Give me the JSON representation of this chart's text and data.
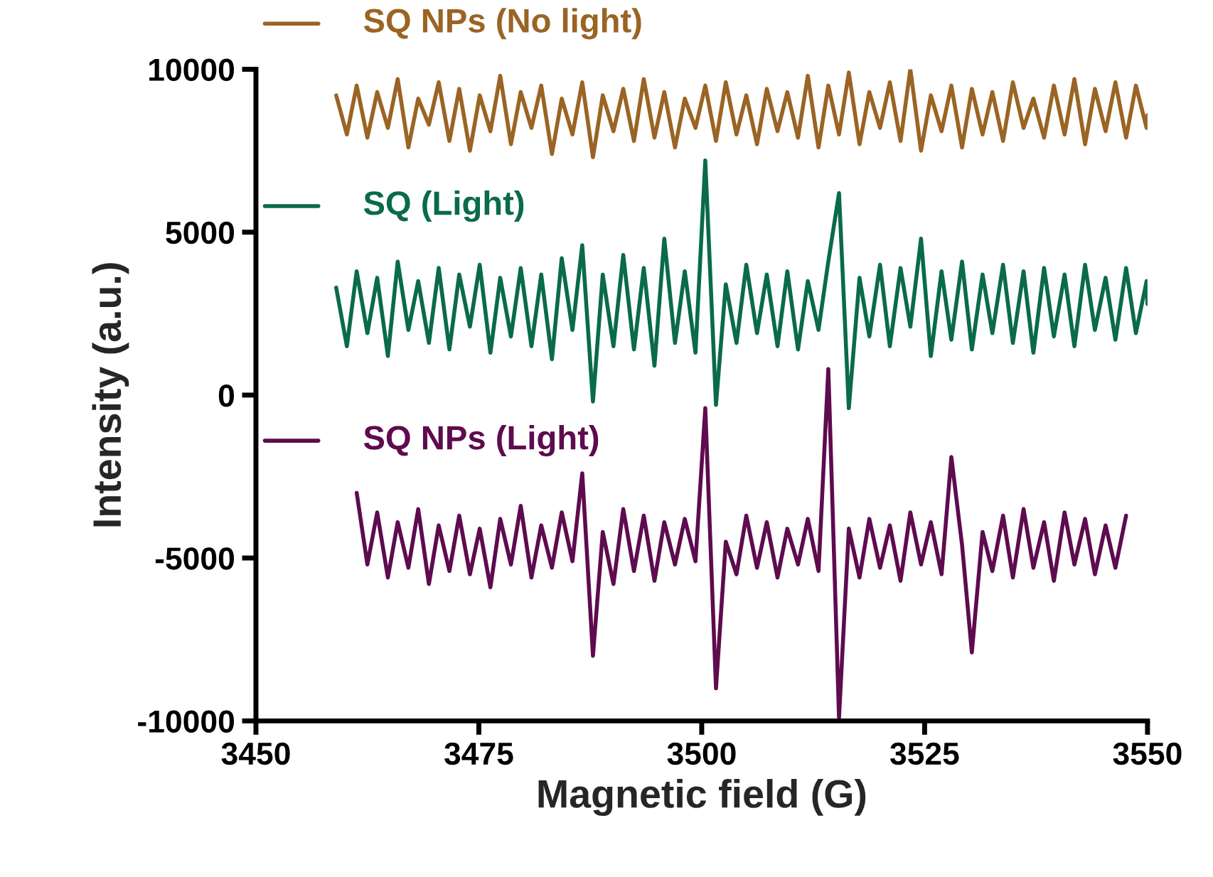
{
  "chart_data": {
    "type": "line",
    "xlabel": "Magnetic field (G)",
    "ylabel": "Intensity (a.u.)",
    "xlim": [
      3450,
      3550
    ],
    "xticks": [
      3450,
      3475,
      3500,
      3525,
      3550
    ],
    "ylim": [
      -10000,
      10000
    ],
    "legend": "top left",
    "yticks": [
      -10000,
      -5000,
      0,
      5000,
      10000
    ],
    "x": [
      3459.0,
      3460.2,
      3461.3,
      3462.5,
      3463.6,
      3464.8,
      3465.9,
      3467.1,
      3468.2,
      3469.4,
      3470.5,
      3471.7,
      3472.8,
      3474.0,
      3475.1,
      3476.3,
      3477.4,
      3478.6,
      3479.7,
      3480.9,
      3482.0,
      3483.2,
      3484.3,
      3485.5,
      3486.6,
      3487.8,
      3488.9,
      3490.1,
      3491.2,
      3492.4,
      3493.5,
      3494.7,
      3495.8,
      3497.0,
      3498.1,
      3499.3,
      3500.4,
      3501.6,
      3502.7,
      3503.9,
      3505.0,
      3506.2,
      3507.3,
      3508.5,
      3509.6,
      3510.8,
      3511.9,
      3513.1,
      3514.2,
      3515.4,
      3516.5,
      3517.7,
      3518.8,
      3520.0,
      3521.1,
      3522.3,
      3523.4,
      3524.6,
      3525.7,
      3526.9,
      3528.0,
      3529.2,
      3530.3,
      3531.5,
      3532.6,
      3533.8,
      3534.9,
      3536.1,
      3537.2,
      3538.4,
      3539.5,
      3540.7,
      3541.8,
      3543.0,
      3544.1,
      3545.3,
      3546.4,
      3547.6,
      3548.7,
      3549.9,
      3550.0
    ],
    "series": [
      {
        "name": "SQ NPs (No light)",
        "color": "#9a6424",
        "values": [
          9200,
          8000,
          9500,
          7900,
          9300,
          8200,
          9700,
          7600,
          9100,
          8300,
          9600,
          7800,
          9400,
          7500,
          9200,
          8100,
          9800,
          7700,
          9300,
          8200,
          9500,
          7400,
          9100,
          8000,
          9600,
          7300,
          9200,
          8100,
          9400,
          7800,
          9700,
          7900,
          9300,
          7600,
          9100,
          8200,
          9500,
          7800,
          9600,
          8000,
          9200,
          7700,
          9400,
          8100,
          9300,
          7900,
          9800,
          7600,
          9500,
          8000,
          9900,
          7700,
          9300,
          8200,
          9600,
          7800,
          10000,
          7500,
          9200,
          8100,
          9500,
          7600,
          9400,
          8000,
          9300,
          7800,
          9600,
          8200,
          9100,
          7900,
          9500,
          8000,
          9700,
          7700,
          9400,
          8100,
          9600,
          7900,
          9500,
          8200,
          8600
        ]
      },
      {
        "name": "SQ (Light)",
        "color": "#0a6b48",
        "values": [
          3300,
          1500,
          3800,
          1900,
          3600,
          1200,
          4100,
          2000,
          3500,
          1600,
          3900,
          1400,
          3700,
          2100,
          4000,
          1300,
          3600,
          1800,
          3900,
          1500,
          3700,
          1100,
          4200,
          2000,
          4600,
          -200,
          3700,
          1500,
          4300,
          1400,
          3900,
          900,
          4800,
          1600,
          3800,
          1300,
          7200,
          -300,
          3400,
          1600,
          4000,
          1900,
          3700,
          1500,
          3800,
          1400,
          3500,
          2000,
          4100,
          6200,
          -400,
          3600,
          1800,
          4000,
          1500,
          3900,
          2100,
          4800,
          1200,
          3800,
          1700,
          4100,
          1400,
          3700,
          1900,
          4000,
          1600,
          3800,
          1300,
          3900,
          1800,
          3700,
          1500,
          4000,
          2000,
          3600,
          1700,
          3900,
          1900,
          3500,
          2800
        ]
      },
      {
        "name": "SQ NPs (Light)",
        "color": "#5e0b4f",
        "x": [
          3461.3,
          3462.5,
          3463.6,
          3464.8,
          3465.9,
          3467.1,
          3468.2,
          3469.4,
          3470.5,
          3471.7,
          3472.8,
          3474.0,
          3475.1,
          3476.3,
          3477.4,
          3478.6,
          3479.7,
          3480.9,
          3482.0,
          3483.2,
          3484.3,
          3485.5,
          3486.6,
          3487.8,
          3488.9,
          3490.1,
          3491.2,
          3492.4,
          3493.5,
          3494.7,
          3495.8,
          3497.0,
          3498.1,
          3499.3,
          3500.4,
          3501.6,
          3502.7,
          3503.9,
          3505.0,
          3506.2,
          3507.3,
          3508.5,
          3509.6,
          3510.8,
          3511.9,
          3513.1,
          3514.2,
          3515.4,
          3516.5,
          3517.7,
          3518.8,
          3520.0,
          3521.1,
          3522.3,
          3523.4,
          3524.6,
          3525.7,
          3526.9,
          3528.0,
          3529.2,
          3530.3,
          3531.5,
          3532.6,
          3533.8,
          3534.9,
          3536.1,
          3537.2,
          3538.4,
          3539.5,
          3540.7,
          3541.8,
          3543.0,
          3544.1,
          3545.3,
          3546.4,
          3547.6
        ],
        "values": [
          -3000,
          -5200,
          -3600,
          -5600,
          -3900,
          -5300,
          -3500,
          -5800,
          -4000,
          -5400,
          -3700,
          -5500,
          -4100,
          -5900,
          -3800,
          -5200,
          -3400,
          -5600,
          -4000,
          -5300,
          -3600,
          -5100,
          -2400,
          -8000,
          -4200,
          -5800,
          -3500,
          -5400,
          -3700,
          -5700,
          -3900,
          -5200,
          -3800,
          -5100,
          -400,
          -9000,
          -4500,
          -5500,
          -3700,
          -5300,
          -3900,
          -5600,
          -4100,
          -5200,
          -3800,
          -5400,
          800,
          -9900,
          -4100,
          -5600,
          -3800,
          -5300,
          -4000,
          -5700,
          -3600,
          -5200,
          -3900,
          -5500,
          -1900,
          -4600,
          -7900,
          -4200,
          -5400,
          -3700,
          -5600,
          -3500,
          -5300,
          -3900,
          -5700,
          -3600,
          -5200,
          -3800,
          -5500,
          -4000,
          -5300,
          -3700
        ]
      }
    ]
  }
}
